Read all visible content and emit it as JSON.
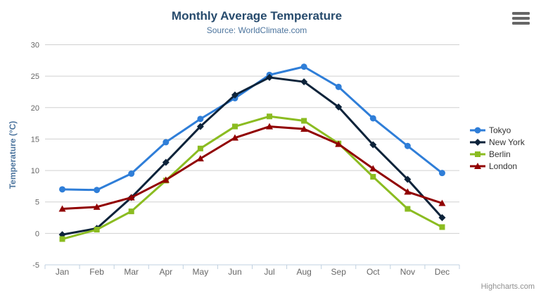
{
  "chart_data": {
    "type": "line",
    "title": "Monthly Average Temperature",
    "subtitle": "Source: WorldClimate.com",
    "categories": [
      "Jan",
      "Feb",
      "Mar",
      "Apr",
      "May",
      "Jun",
      "Jul",
      "Aug",
      "Sep",
      "Oct",
      "Nov",
      "Dec"
    ],
    "xlabel": "",
    "ylabel": "Temperature (°C)",
    "ylim": [
      -5,
      30
    ],
    "yticks": [
      -5,
      0,
      5,
      10,
      15,
      20,
      25,
      30
    ],
    "grid": true,
    "legend_position": "right",
    "series": [
      {
        "name": "Tokyo",
        "color": "#2f7ed8",
        "marker": "circle",
        "values": [
          7.0,
          6.9,
          9.5,
          14.5,
          18.2,
          21.5,
          25.2,
          26.5,
          23.3,
          18.3,
          13.9,
          9.6
        ]
      },
      {
        "name": "New York",
        "color": "#0d233a",
        "marker": "diamond",
        "values": [
          -0.2,
          0.8,
          5.7,
          11.3,
          17.0,
          22.0,
          24.8,
          24.1,
          20.1,
          14.1,
          8.6,
          2.5
        ]
      },
      {
        "name": "Berlin",
        "color": "#8bbc21",
        "marker": "square",
        "values": [
          -0.9,
          0.6,
          3.5,
          8.4,
          13.5,
          17.0,
          18.6,
          17.9,
          14.3,
          9.0,
          3.9,
          1.0
        ]
      },
      {
        "name": "London",
        "color": "#910000",
        "marker": "triangle",
        "values": [
          3.9,
          4.2,
          5.7,
          8.5,
          11.9,
          15.2,
          17.0,
          16.6,
          14.2,
          10.3,
          6.6,
          4.8
        ]
      }
    ]
  },
  "colors": {
    "background": "#ffffff",
    "title": "#274b6d",
    "subtitle": "#4d759e",
    "axis_title": "#4d759e",
    "axis_label": "#666666",
    "axis_line": "#c0d0e0",
    "grid": "#d0d0d0",
    "legend_text": "#333333",
    "credits": "#909090",
    "menu_icon": "#666666"
  },
  "icons": {
    "export_menu": "hamburger-menu-icon"
  },
  "credits": {
    "text": "Highcharts.com"
  }
}
